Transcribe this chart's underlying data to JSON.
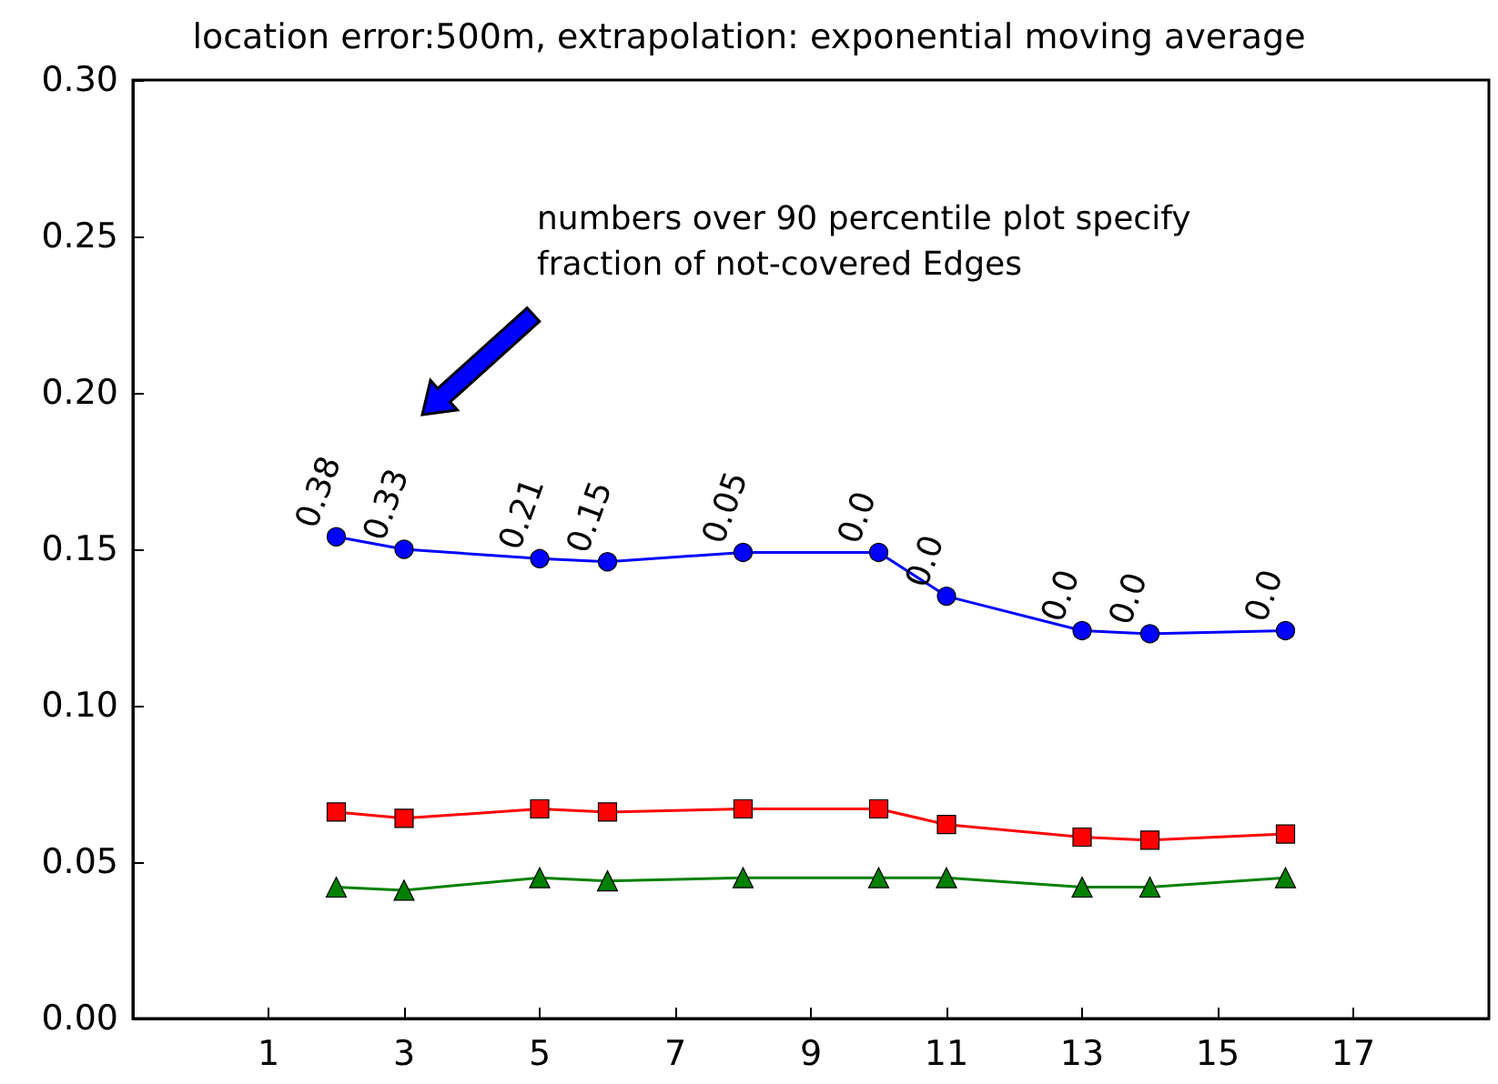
{
  "chart_data": {
    "type": "line",
    "title": "location error:500m, extrapolation: exponential moving average",
    "x": [
      2,
      3,
      5,
      6,
      8,
      10,
      11,
      13,
      14,
      16
    ],
    "series": [
      {
        "color": "#0000ff",
        "marker": "circle",
        "values": [
          0.154,
          0.15,
          0.147,
          0.146,
          0.149,
          0.149,
          0.135,
          0.124,
          0.123,
          0.124
        ]
      },
      {
        "color": "#ff0000",
        "marker": "square",
        "values": [
          0.066,
          0.064,
          0.067,
          0.066,
          0.067,
          0.067,
          0.062,
          0.058,
          0.057,
          0.059
        ]
      },
      {
        "color": "#008000",
        "marker": "triangle",
        "values": [
          0.042,
          0.041,
          0.045,
          0.044,
          0.045,
          0.045,
          0.045,
          0.042,
          0.042,
          0.045
        ]
      }
    ],
    "annotations": [
      "numbers over 90 percentile plot specify\nfraction of not-covered Edges",
      {
        "text": "0.38",
        "x": 2,
        "y": 0.154
      },
      {
        "text": "0.33",
        "x": 3,
        "y": 0.15
      },
      {
        "text": "0.21",
        "x": 5,
        "y": 0.147
      },
      {
        "text": "0.15",
        "x": 6,
        "y": 0.146
      },
      {
        "text": "0.05",
        "x": 8,
        "y": 0.149
      },
      {
        "text": "0.0",
        "x": 10,
        "y": 0.149
      },
      {
        "text": "0.0",
        "x": 11,
        "y": 0.135
      },
      {
        "text": "0.0",
        "x": 13,
        "y": 0.124
      },
      {
        "text": "0.0",
        "x": 14,
        "y": 0.123
      },
      {
        "text": "0.0",
        "x": 16,
        "y": 0.124
      }
    ],
    "xlim": [
      -1,
      19
    ],
    "xticks": [
      1,
      3,
      5,
      7,
      9,
      11,
      13,
      15,
      17
    ],
    "ylim": [
      0,
      0.3
    ],
    "yticks": [
      {
        "value": 0,
        "label": "0.00"
      },
      0.05,
      {
        "value": 0.1,
        "label": "0.10"
      },
      0.15,
      {
        "value": 0.2,
        "label": "0.20"
      },
      0.25,
      {
        "value": 0.3,
        "label": "0.30"
      }
    ],
    "grid": false,
    "line_style": "solid"
  }
}
